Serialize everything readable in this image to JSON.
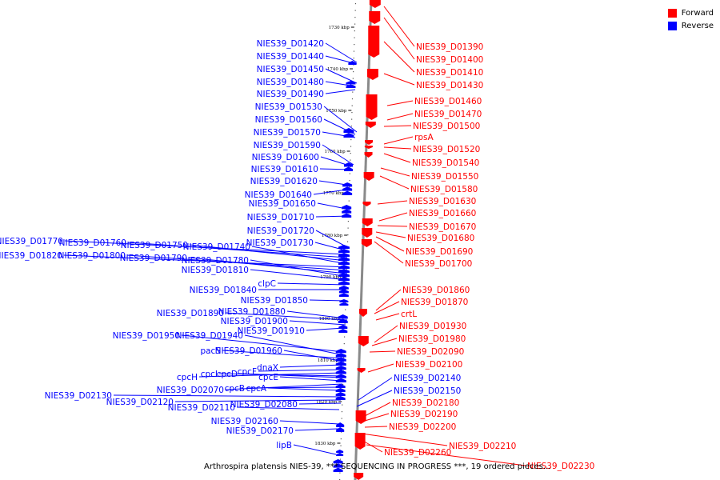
{
  "legend": {
    "forward": {
      "label": "Forward",
      "color": "#ff0000"
    },
    "reverse": {
      "label": "Reverse",
      "color": "#0000ff"
    }
  },
  "caption": "Arthrospira platensis NIES-39, *** SEQUENCING IN PROGRESS ***, 19 ordered pieces...",
  "scale_ticks": [
    "1730 kbp",
    "1740 kbp",
    "1750 kbp",
    "1760 kbp",
    "1770 kbp",
    "1780 kbp",
    "1790 kbp",
    "1800 kbp",
    "1810 kbp",
    "1820 kbp",
    "1830 kbp"
  ],
  "forward_labels": [
    "NIES39_D01390",
    "NIES39_D01400",
    "NIES39_D01410",
    "NIES39_D01430",
    "NIES39_D01460",
    "NIES39_D01470",
    "NIES39_D01500",
    "rpsA",
    "NIES39_D01520",
    "NIES39_D01540",
    "NIES39_D01550",
    "NIES39_D01580",
    "NIES39_D01630",
    "NIES39_D01660",
    "NIES39_D01670",
    "NIES39_D01680",
    "NIES39_D01690",
    "NIES39_D01700",
    "NIES39_D01860",
    "NIES39_D01870",
    "crtL",
    "NIES39_D01930",
    "NIES39_D01980",
    "NIES39_D02090",
    "NIES39_D02100",
    "NIES39_D02180",
    "NIES39_D02190",
    "NIES39_D02200",
    "NIES39_D02210",
    "NIES39_D02260",
    "NIES39_D02230"
  ],
  "reverse_labels_right": [
    "NIES39_D02140",
    "NIES39_D02150"
  ],
  "reverse_labels": [
    "NIES39_D01420",
    "NIES39_D01440",
    "NIES39_D01450",
    "NIES39_D01480",
    "NIES39_D01490",
    "NIES39_D01530",
    "NIES39_D01560",
    "NIES39_D01570",
    "NIES39_D01590",
    "NIES39_D01600",
    "NIES39_D01610",
    "NIES39_D01620",
    "NIES39_D01640",
    "NIES39_D01650",
    "NIES39_D01710",
    "NIES39_D01720",
    "NIES39_D01730",
    "NIES39_D01770",
    "NIES39_D01760",
    "NIES39_D01750",
    "NIES39_D01740",
    "NIES39_D01820",
    "NIES39_D01800",
    "NIES39_D01790",
    "NIES39_D01780",
    "NIES39_D01810",
    "clpC",
    "NIES39_D01840",
    "NIES39_D01850",
    "NIES39_D01890",
    "NIES39_D01880",
    "NIES39_D01900",
    "NIES39_D01910",
    "NIES39_D01950",
    "NIES39_D01940",
    "pacS",
    "NIES39_D01960",
    "dnaX",
    "cpcF",
    "cpcH",
    "cpcI",
    "cpcD",
    "cpcE",
    "NIES39_D02070",
    "cpcB",
    "cpcA",
    "NIES39_D02130",
    "NIES39_D02120",
    "NIES39_D02080",
    "NIES39_D02110",
    "NIES39_D02160",
    "NIES39_D02170",
    "lipB"
  ]
}
